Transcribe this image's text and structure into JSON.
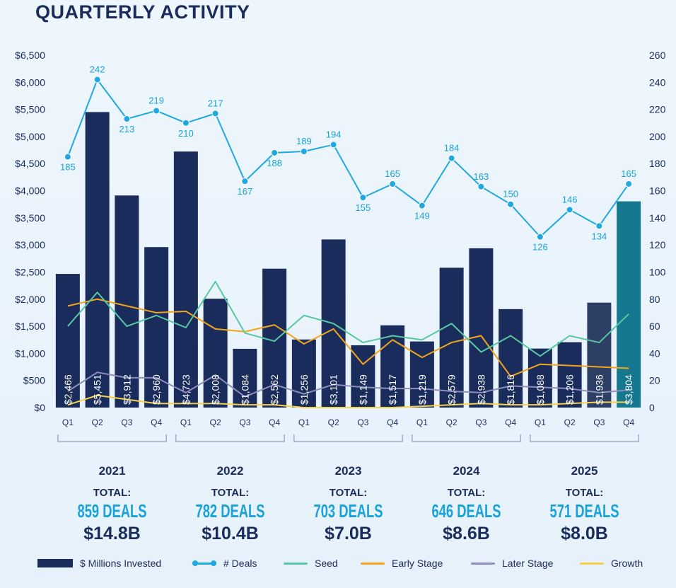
{
  "title": "QUARTERLY ACTIVITY",
  "chart_data": {
    "type": "bar",
    "categories": [
      "Q1",
      "Q2",
      "Q3",
      "Q4",
      "Q1",
      "Q2",
      "Q3",
      "Q4",
      "Q1",
      "Q2",
      "Q3",
      "Q4",
      "Q1",
      "Q2",
      "Q3",
      "Q4",
      "Q1",
      "Q2",
      "Q3",
      "Q4"
    ],
    "left_axis": {
      "min": 0,
      "max": 6500,
      "step": 500,
      "format": "currency"
    },
    "right_axis": {
      "min": 0,
      "max": 260,
      "step": 20
    },
    "series": [
      {
        "name": "$ Millions Invested",
        "type": "bar",
        "axis": "left",
        "values": [
          2466,
          5451,
          3912,
          2960,
          4723,
          2008,
          1084,
          2562,
          1256,
          3101,
          1149,
          1517,
          1219,
          2579,
          2938,
          1816,
          1088,
          1206,
          1936,
          3804
        ],
        "labels": [
          "$2,466",
          "$5,451",
          "$3,912",
          "$2,960",
          "$4,723",
          "$2,008",
          "$1,084",
          "$2,562",
          "$1,256",
          "$3,101",
          "$1,149",
          "$1,517",
          "$1,219",
          "$2,579",
          "$2,938",
          "$1,816",
          "$1,088",
          "$1,206",
          "$1,936",
          "$3,804"
        ]
      },
      {
        "name": "# Deals",
        "type": "line",
        "axis": "right",
        "values": [
          185,
          242,
          213,
          219,
          210,
          217,
          167,
          188,
          189,
          194,
          155,
          165,
          149,
          184,
          163,
          150,
          126,
          146,
          134,
          165
        ]
      },
      {
        "name": "Seed",
        "type": "line",
        "axis": "right",
        "values": [
          60,
          85,
          60,
          68,
          59,
          93,
          55,
          49,
          68,
          62,
          48,
          53,
          50,
          62,
          41,
          53,
          38,
          53,
          48,
          69
        ]
      },
      {
        "name": "Early Stage",
        "type": "line",
        "axis": "right",
        "values": [
          75,
          80,
          75,
          70,
          71,
          58,
          56,
          61,
          47,
          58,
          32,
          50,
          37,
          48,
          53,
          23,
          32,
          31,
          30,
          29
        ]
      },
      {
        "name": "Later Stage",
        "type": "line",
        "axis": "right",
        "values": [
          12,
          26,
          22,
          22,
          11,
          24,
          8,
          17,
          10,
          17,
          15,
          14,
          14,
          12,
          11,
          16,
          15,
          14,
          11,
          13
        ]
      },
      {
        "name": "Growth",
        "type": "line",
        "axis": "right",
        "values": [
          2,
          9,
          6,
          3,
          3,
          3,
          2,
          2,
          0,
          0,
          0,
          0,
          1,
          2,
          3,
          2,
          2,
          3,
          4,
          4
        ]
      }
    ],
    "years": [
      {
        "year": "2021",
        "total_label": "TOTAL:",
        "deals": "859 DEALS",
        "amount": "$14.8B"
      },
      {
        "year": "2022",
        "total_label": "TOTAL:",
        "deals": "782 DEALS",
        "amount": "$10.4B"
      },
      {
        "year": "2023",
        "total_label": "TOTAL:",
        "deals": "703 DEALS",
        "amount": "$7.0B"
      },
      {
        "year": "2024",
        "total_label": "TOTAL:",
        "deals": "646 DEALS",
        "amount": "$8.6B"
      },
      {
        "year": "2025",
        "total_label": "TOTAL:",
        "deals": "571 DEALS",
        "amount": "$8.0B"
      }
    ],
    "legend_position": "bottom"
  },
  "legend": [
    "$ Millions Invested",
    "# Deals",
    "Seed",
    "Early Stage",
    "Later Stage",
    "Growth"
  ],
  "colors": {
    "bar": "#1a2c5b",
    "bar_dim": "#2d3f64",
    "bar_last": "#16788f",
    "deals": "#1fa9df",
    "seed": "#58c8a2",
    "early": "#f2a51c",
    "later": "#8e8fbf",
    "growth": "#f6d24a",
    "text": "#1a2c5b",
    "accent": "#19a3d9"
  }
}
